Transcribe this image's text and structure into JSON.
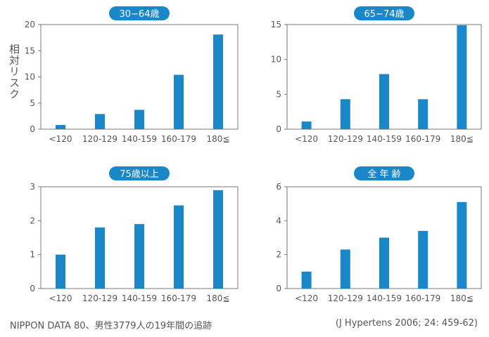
{
  "y_axis_label": "相対リスク",
  "footer": {
    "note": "NIPPON DATA 80、男性3779人の19年間の追跡",
    "citation": "(J Hypertens 2006; 24: 459-62)"
  },
  "colors": {
    "bar": "#1a87c9",
    "badge": "#1a87c9",
    "axis": "#777777"
  },
  "chart_data": [
    {
      "type": "bar",
      "title": "30−64歳",
      "categories": [
        "<120",
        "120-129",
        "140-159",
        "160-179",
        "180≦"
      ],
      "values": [
        0.8,
        2.9,
        3.7,
        10.4,
        18.1
      ],
      "ylim": [
        0,
        20
      ],
      "yticks": [
        0,
        5,
        10,
        15,
        20
      ]
    },
    {
      "type": "bar",
      "title": "65−74歳",
      "categories": [
        "<120",
        "120-129",
        "140-159",
        "160-179",
        "180≦"
      ],
      "values": [
        1.1,
        4.3,
        7.9,
        4.3,
        14.9
      ],
      "ylim": [
        0,
        15
      ],
      "yticks": [
        0,
        5,
        10,
        15
      ]
    },
    {
      "type": "bar",
      "title": "75歳以上",
      "categories": [
        "<120",
        "120-129",
        "140-159",
        "160-179",
        "180≦"
      ],
      "values": [
        1.0,
        1.8,
        1.9,
        2.45,
        2.9
      ],
      "ylim": [
        0,
        3
      ],
      "yticks": [
        0,
        1,
        2,
        3
      ]
    },
    {
      "type": "bar",
      "title": "全 年 齢",
      "categories": [
        "<120",
        "120-129",
        "140-159",
        "160-179",
        "180≦"
      ],
      "values": [
        1.0,
        2.3,
        3.0,
        3.4,
        5.1
      ],
      "ylim": [
        0,
        6
      ],
      "yticks": [
        0,
        2,
        4,
        6
      ]
    }
  ]
}
